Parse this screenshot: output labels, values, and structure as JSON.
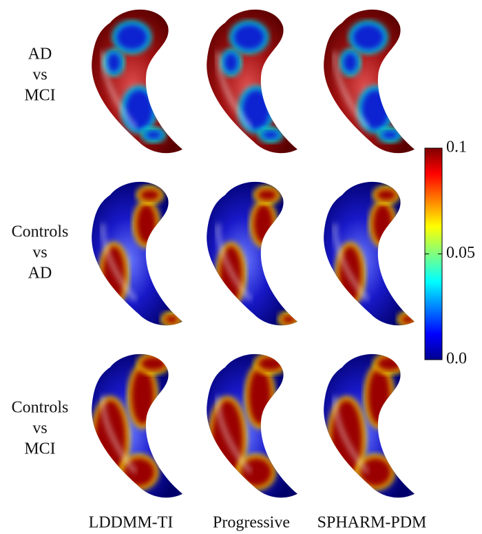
{
  "row_labels": [
    [
      "AD",
      "vs",
      "MCI"
    ],
    [
      "Controls",
      "vs",
      "AD"
    ],
    [
      "Controls",
      "vs",
      "MCI"
    ]
  ],
  "column_labels": [
    "LDDMM-TI",
    "Progressive",
    "SPHARM-PDM"
  ],
  "colorbar": {
    "range": [
      0,
      0.1
    ],
    "ticks": [
      {
        "value": 0.1,
        "label": "0.1"
      },
      {
        "value": 0.05,
        "label": "0.05"
      },
      {
        "value": 0,
        "label": "0.0"
      }
    ]
  }
}
